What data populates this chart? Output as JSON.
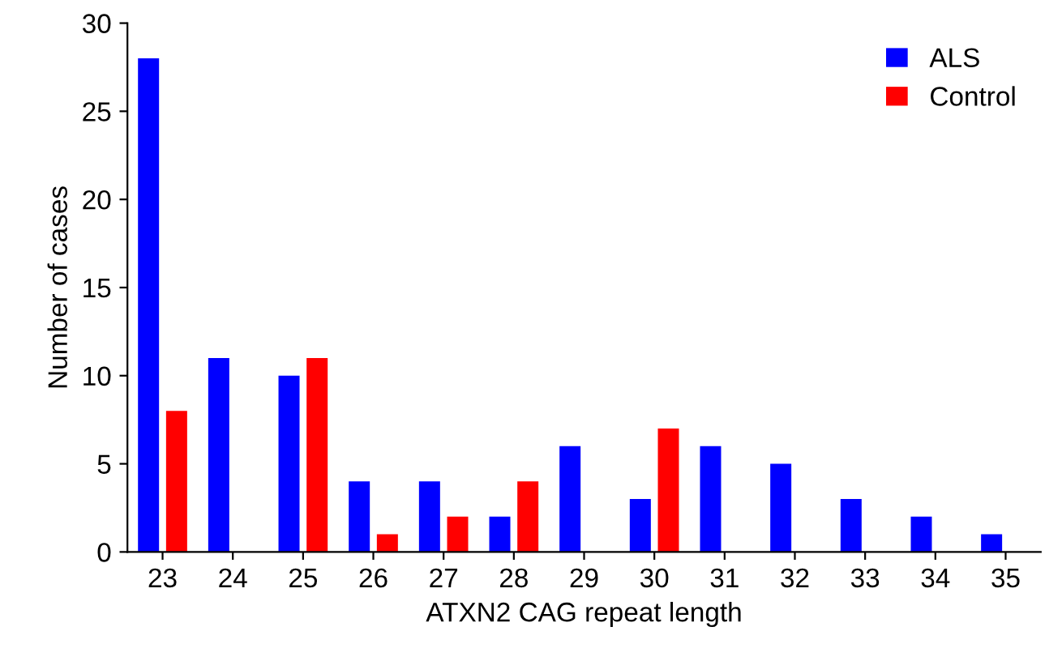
{
  "chart_data": {
    "type": "bar",
    "xlabel": "ATXN2 CAG repeat length",
    "ylabel": "Number of cases",
    "categories": [
      "23",
      "24",
      "25",
      "26",
      "27",
      "28",
      "29",
      "30",
      "31",
      "32",
      "33",
      "34",
      "35"
    ],
    "series": [
      {
        "name": "ALS",
        "color": "#0000ff",
        "values": [
          28,
          11,
          10,
          4,
          4,
          2,
          6,
          3,
          6,
          5,
          3,
          2,
          1
        ]
      },
      {
        "name": "Control",
        "color": "#ff0000",
        "values": [
          8,
          0,
          11,
          1,
          2,
          4,
          0,
          7,
          0,
          0,
          0,
          0,
          0
        ]
      }
    ],
    "ylim": [
      0,
      30
    ],
    "yticks": [
      0,
      5,
      10,
      15,
      20,
      25,
      30
    ],
    "grid": false,
    "legend": "top right"
  }
}
